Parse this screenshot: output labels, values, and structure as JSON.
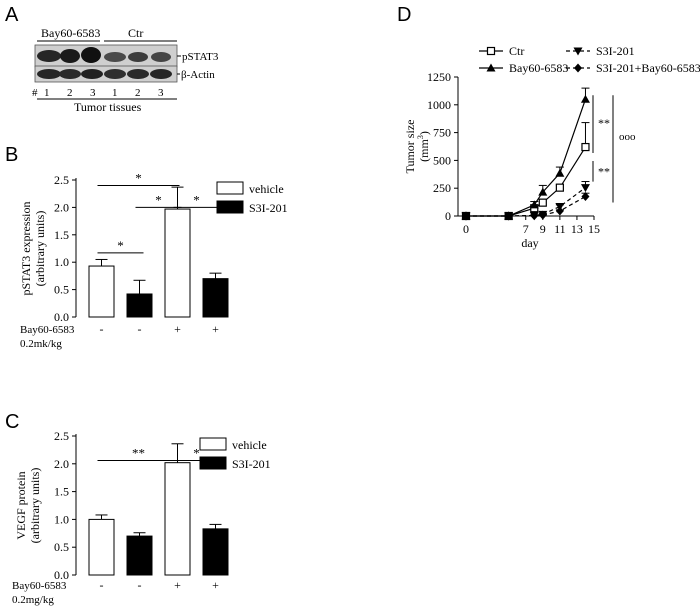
{
  "panels": {
    "A": {
      "letter": "A",
      "group_labels": [
        "Bay60-6583",
        "Ctr"
      ],
      "band_labels": [
        "pSTAT3",
        "β-Actin"
      ],
      "lane_prefix": "#",
      "lanes": [
        "1",
        "2",
        "3",
        "1",
        "2",
        "3"
      ],
      "xlabel": "Tumor tissues"
    },
    "B": {
      "letter": "B"
    },
    "C": {
      "letter": "C"
    },
    "D": {
      "letter": "D"
    }
  },
  "chart_data": [
    {
      "id": "B",
      "type": "bar",
      "ylabel": [
        "pSTAT3 expression",
        "(arbitrary units)"
      ],
      "ylim": [
        0,
        2.5
      ],
      "yticks": [
        "0.0",
        "0.5",
        "1.0",
        "1.5",
        "2.0",
        "2.5"
      ],
      "bars": [
        {
          "series": "vehicle",
          "value": 0.93,
          "error": 0.12
        },
        {
          "series": "S3I-201",
          "value": 0.42,
          "error": 0.25
        },
        {
          "series": "vehicle",
          "value": 1.97,
          "error": 0.4
        },
        {
          "series": "S3I-201",
          "value": 0.7,
          "error": 0.1
        }
      ],
      "treatment_label": [
        "Bay60-6583",
        "0.2mk/kg"
      ],
      "treatment_signs": [
        "-",
        "-",
        "+",
        "+"
      ],
      "legend": [
        {
          "name": "vehicle",
          "color": "#ffffff"
        },
        {
          "name": "S3I-201",
          "color": "#000000"
        }
      ],
      "significance": [
        {
          "from": 0,
          "to": 1,
          "y": 1.17,
          "label": "*"
        },
        {
          "from": 0,
          "to": 2,
          "y": 2.4,
          "label": "*"
        },
        {
          "from": 1,
          "to": 2,
          "y": 2.0,
          "label": "*"
        },
        {
          "from": 2,
          "to": 3,
          "y": 2.0,
          "label": "*"
        }
      ]
    },
    {
      "id": "C",
      "type": "bar",
      "ylabel": [
        "VEGF protein",
        "(arbitrary units)"
      ],
      "ylim": [
        0,
        2.5
      ],
      "yticks": [
        "0.0",
        "0.5",
        "1.0",
        "1.5",
        "2.0",
        "2.5"
      ],
      "bars": [
        {
          "series": "vehicle",
          "value": 1.0,
          "error": 0.08
        },
        {
          "series": "S3I-201",
          "value": 0.7,
          "error": 0.06
        },
        {
          "series": "vehicle",
          "value": 2.02,
          "error": 0.34
        },
        {
          "series": "S3I-201",
          "value": 0.83,
          "error": 0.08
        }
      ],
      "treatment_label": [
        "Bay60-6583",
        "0.2mg/kg"
      ],
      "treatment_signs": [
        "-",
        "-",
        "+",
        "+"
      ],
      "legend": [
        {
          "name": "vehicle",
          "color": "#ffffff"
        },
        {
          "name": "S3I-201",
          "color": "#000000"
        }
      ],
      "significance": [
        {
          "from": 0,
          "to": 2,
          "y": 2.06,
          "label": "**"
        },
        {
          "from": 2,
          "to": 3,
          "y": 2.06,
          "label": "*"
        }
      ]
    },
    {
      "id": "D",
      "type": "line",
      "xlabel": "day",
      "ylabel": [
        "Tumor size",
        "(mm",
        "3",
        ")"
      ],
      "xlim": [
        0,
        15
      ],
      "ylim": [
        0,
        1250
      ],
      "xticks": [
        0,
        7,
        9,
        11,
        13,
        15
      ],
      "yticks": [
        0,
        250,
        500,
        750,
        1000,
        1250
      ],
      "series": [
        {
          "name": "Ctr",
          "marker": "open-square",
          "dashed": false,
          "x": [
            0,
            5,
            8,
            9,
            11,
            14
          ],
          "y": [
            0,
            0,
            70,
            120,
            255,
            620
          ],
          "err": [
            0,
            0,
            20,
            30,
            25,
            220
          ]
        },
        {
          "name": "Bay60-6583",
          "marker": "filled-triangle-up",
          "dashed": false,
          "x": [
            0,
            5,
            8,
            9,
            11,
            14
          ],
          "y": [
            0,
            0,
            100,
            215,
            385,
            1050
          ],
          "err": [
            0,
            0,
            30,
            60,
            55,
            100
          ]
        },
        {
          "name": "S3I-201",
          "marker": "filled-triangle-down",
          "dashed": true,
          "x": [
            0,
            5,
            8,
            9,
            11,
            14
          ],
          "y": [
            0,
            0,
            5,
            15,
            85,
            255
          ],
          "err": [
            0,
            0,
            5,
            8,
            15,
            55
          ]
        },
        {
          "name": "S3I-201+Bay60-6583",
          "marker": "filled-diamond",
          "dashed": true,
          "x": [
            0,
            5,
            8,
            9,
            11,
            14
          ],
          "y": [
            0,
            0,
            2,
            8,
            45,
            175
          ],
          "err": [
            0,
            0,
            3,
            5,
            10,
            30
          ]
        }
      ],
      "annotations": [
        "**",
        "**",
        "ooo"
      ]
    }
  ]
}
